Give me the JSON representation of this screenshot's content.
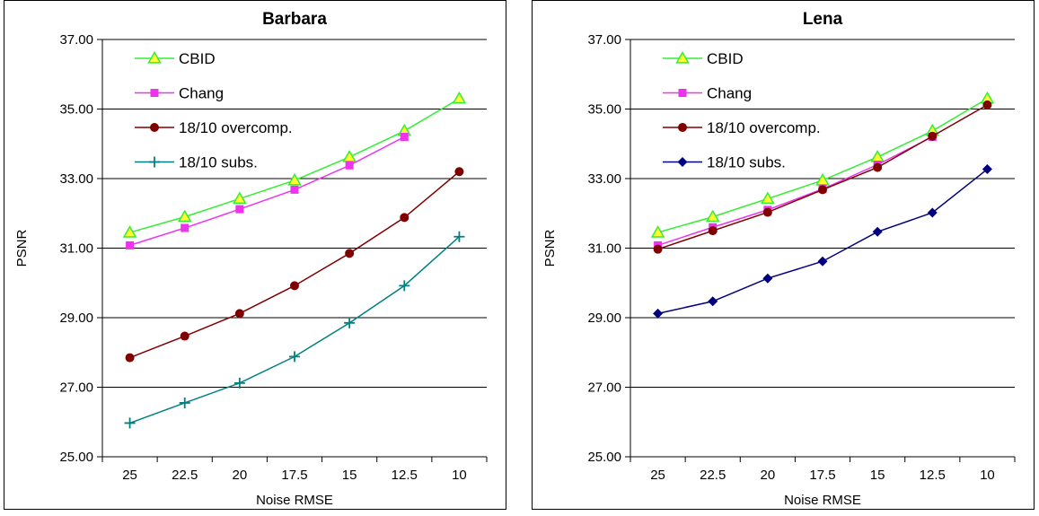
{
  "chart_data": [
    {
      "type": "line",
      "title": "Barbara",
      "xlabel": "Noise RMSE",
      "ylabel": "PSNR",
      "categories": [
        "25",
        "22.5",
        "20",
        "17.5",
        "15",
        "12.5",
        "10"
      ],
      "ylim": [
        25,
        37
      ],
      "yticks": [
        "25.00",
        "27.00",
        "29.00",
        "31.00",
        "33.00",
        "35.00",
        "37.00"
      ],
      "grid": "horizontal",
      "legend": "top-left",
      "series": [
        {
          "name": "CBID",
          "color": "#33ee33",
          "marker": "triangle",
          "values": [
            31.45,
            31.9,
            32.42,
            32.95,
            33.62,
            34.37,
            35.3
          ]
        },
        {
          "name": "Chang",
          "color": "#ee33ee",
          "marker": "square",
          "values": [
            31.08,
            31.58,
            32.12,
            32.68,
            33.38,
            34.2,
            null
          ]
        },
        {
          "name": "18/10 overcomp.",
          "color": "#800000",
          "marker": "circle",
          "values": [
            27.85,
            28.47,
            29.12,
            29.92,
            30.85,
            31.88,
            33.2
          ]
        },
        {
          "name": "18/10 subs.",
          "color": "#008080",
          "marker": "plus",
          "values": [
            25.97,
            26.55,
            27.12,
            27.88,
            28.85,
            29.92,
            31.33
          ]
        }
      ]
    },
    {
      "type": "line",
      "title": "Lena",
      "xlabel": "Noise RMSE",
      "ylabel": "PSNR",
      "categories": [
        "25",
        "22.5",
        "20",
        "17.5",
        "15",
        "12.5",
        "10"
      ],
      "ylim": [
        25,
        37
      ],
      "yticks": [
        "25.00",
        "27.00",
        "29.00",
        "31.00",
        "33.00",
        "35.00",
        "37.00"
      ],
      "grid": "horizontal",
      "legend": "top-left",
      "series": [
        {
          "name": "CBID",
          "color": "#33ee33",
          "marker": "triangle",
          "values": [
            31.45,
            31.9,
            32.42,
            32.95,
            33.62,
            34.37,
            35.3
          ]
        },
        {
          "name": "Chang",
          "color": "#ee33ee",
          "marker": "square",
          "values": [
            31.08,
            31.6,
            32.1,
            32.7,
            33.4,
            34.2,
            null
          ]
        },
        {
          "name": "18/10 overcomp.",
          "color": "#800000",
          "marker": "circle",
          "values": [
            30.97,
            31.5,
            32.03,
            32.68,
            33.32,
            34.22,
            35.12
          ]
        },
        {
          "name": "18/10 subs.",
          "color": "#000080",
          "marker": "diamond",
          "values": [
            29.12,
            29.47,
            30.13,
            30.62,
            31.47,
            32.02,
            33.27
          ]
        }
      ]
    }
  ]
}
